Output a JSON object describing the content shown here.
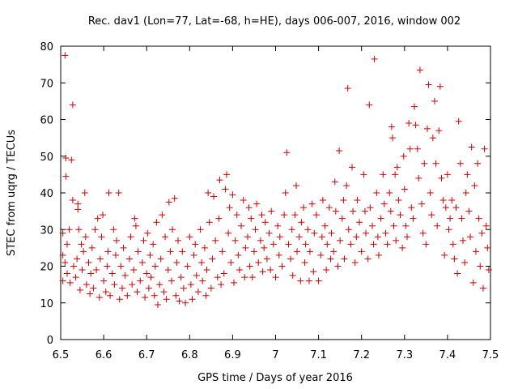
{
  "chart_data": {
    "type": "scatter",
    "title": "Rec. dav1 (Lon=77, Lat=-68, h=HE), days 006-007, 2016, window 002",
    "xlabel": "GPS time / Days of year 2016",
    "ylabel": "STEC from uqrg / TECUs",
    "xlim": [
      6.5,
      7.5
    ],
    "ylim": [
      0,
      80
    ],
    "xticks": [
      "6.5",
      "6.6",
      "6.7",
      "6.8",
      "6.9",
      "7",
      "7.1",
      "7.2",
      "7.3",
      "7.4",
      "7.5"
    ],
    "yticks": [
      "0",
      "10",
      "20",
      "30",
      "40",
      "50",
      "60",
      "70",
      "80"
    ],
    "marker": "+",
    "color": "#cc0000",
    "points": [
      [
        6.505,
        16
      ],
      [
        6.505,
        23
      ],
      [
        6.505,
        29
      ],
      [
        6.51,
        77.5
      ],
      [
        6.51,
        21
      ],
      [
        6.512,
        49.5
      ],
      [
        6.512,
        44.5
      ],
      [
        6.515,
        18
      ],
      [
        6.515,
        26
      ],
      [
        6.52,
        30
      ],
      [
        6.522,
        15.5
      ],
      [
        6.525,
        49
      ],
      [
        6.528,
        64
      ],
      [
        6.528,
        38
      ],
      [
        6.53,
        20
      ],
      [
        6.535,
        17
      ],
      [
        6.538,
        22
      ],
      [
        6.54,
        37
      ],
      [
        6.54,
        35.5
      ],
      [
        6.542,
        30
      ],
      [
        6.545,
        13.5
      ],
      [
        6.548,
        26
      ],
      [
        6.55,
        19
      ],
      [
        6.553,
        24
      ],
      [
        6.556,
        40
      ],
      [
        6.558,
        28
      ],
      [
        6.56,
        15
      ],
      [
        6.565,
        21
      ],
      [
        6.568,
        12.5
      ],
      [
        6.57,
        18
      ],
      [
        6.573,
        25
      ],
      [
        6.576,
        14
      ],
      [
        6.58,
        30
      ],
      [
        6.583,
        19
      ],
      [
        6.586,
        33
      ],
      [
        6.59,
        11.5
      ],
      [
        6.592,
        22
      ],
      [
        6.595,
        28
      ],
      [
        6.598,
        34
      ],
      [
        6.6,
        16
      ],
      [
        6.605,
        13
      ],
      [
        6.608,
        20
      ],
      [
        6.61,
        24
      ],
      [
        6.612,
        40
      ],
      [
        6.615,
        12
      ],
      [
        6.62,
        18
      ],
      [
        6.623,
        30
      ],
      [
        6.625,
        15
      ],
      [
        6.628,
        23
      ],
      [
        6.63,
        27
      ],
      [
        6.635,
        40
      ],
      [
        6.637,
        11
      ],
      [
        6.64,
        20
      ],
      [
        6.643,
        14
      ],
      [
        6.646,
        25
      ],
      [
        6.65,
        17.5
      ],
      [
        6.655,
        12
      ],
      [
        6.66,
        22
      ],
      [
        6.663,
        28
      ],
      [
        6.666,
        15
      ],
      [
        6.67,
        19
      ],
      [
        6.672,
        33
      ],
      [
        6.675,
        31
      ],
      [
        6.678,
        13
      ],
      [
        6.68,
        24
      ],
      [
        6.685,
        16
      ],
      [
        6.69,
        21
      ],
      [
        6.693,
        27
      ],
      [
        6.696,
        11.5
      ],
      [
        6.7,
        18
      ],
      [
        6.702,
        29
      ],
      [
        6.705,
        14
      ],
      [
        6.708,
        23
      ],
      [
        6.71,
        17
      ],
      [
        6.715,
        26
      ],
      [
        6.718,
        12
      ],
      [
        6.72,
        20
      ],
      [
        6.723,
        32
      ],
      [
        6.726,
        9.5
      ],
      [
        6.73,
        15
      ],
      [
        6.733,
        22
      ],
      [
        6.736,
        34
      ],
      [
        6.74,
        13
      ],
      [
        6.743,
        28
      ],
      [
        6.746,
        11
      ],
      [
        6.75,
        19
      ],
      [
        6.752,
        37.5
      ],
      [
        6.755,
        24
      ],
      [
        6.758,
        16
      ],
      [
        6.76,
        30
      ],
      [
        6.765,
        38.5
      ],
      [
        6.768,
        12
      ],
      [
        6.77,
        21
      ],
      [
        6.773,
        27
      ],
      [
        6.776,
        10.5
      ],
      [
        6.78,
        17
      ],
      [
        6.783,
        24
      ],
      [
        6.786,
        14
      ],
      [
        6.79,
        10
      ],
      [
        6.795,
        20
      ],
      [
        6.8,
        28
      ],
      [
        6.803,
        15
      ],
      [
        6.806,
        11
      ],
      [
        6.81,
        23
      ],
      [
        6.813,
        26
      ],
      [
        6.816,
        17.5
      ],
      [
        6.82,
        13
      ],
      [
        6.825,
        30
      ],
      [
        6.828,
        21
      ],
      [
        6.83,
        16
      ],
      [
        6.835,
        25
      ],
      [
        6.838,
        12
      ],
      [
        6.84,
        19
      ],
      [
        6.843,
        40
      ],
      [
        6.846,
        32
      ],
      [
        6.85,
        14
      ],
      [
        6.853,
        22
      ],
      [
        6.856,
        39
      ],
      [
        6.86,
        27
      ],
      [
        6.865,
        17
      ],
      [
        6.868,
        33
      ],
      [
        6.87,
        43.5
      ],
      [
        6.873,
        15
      ],
      [
        6.876,
        24
      ],
      [
        6.88,
        18
      ],
      [
        6.883,
        41
      ],
      [
        6.886,
        45
      ],
      [
        6.89,
        29
      ],
      [
        6.893,
        36
      ],
      [
        6.896,
        21
      ],
      [
        6.9,
        39.5
      ],
      [
        6.903,
        15.5
      ],
      [
        6.906,
        27
      ],
      [
        6.91,
        34
      ],
      [
        6.913,
        23
      ],
      [
        6.916,
        19
      ],
      [
        6.92,
        31
      ],
      [
        6.925,
        38
      ],
      [
        6.928,
        17
      ],
      [
        6.93,
        25
      ],
      [
        6.935,
        28
      ],
      [
        6.938,
        36
      ],
      [
        6.94,
        20
      ],
      [
        6.943,
        33
      ],
      [
        6.946,
        17
      ],
      [
        6.95,
        24
      ],
      [
        6.953,
        30
      ],
      [
        6.956,
        37
      ],
      [
        6.96,
        21
      ],
      [
        6.965,
        27
      ],
      [
        6.968,
        34
      ],
      [
        6.97,
        18.5
      ],
      [
        6.973,
        25
      ],
      [
        6.976,
        32
      ],
      [
        6.98,
        22
      ],
      [
        6.985,
        29
      ],
      [
        6.988,
        19
      ],
      [
        6.99,
        35
      ],
      [
        6.995,
        26
      ],
      [
        7.0,
        17
      ],
      [
        7.005,
        31
      ],
      [
        7.008,
        23
      ],
      [
        7.01,
        28
      ],
      [
        7.015,
        20
      ],
      [
        7.02,
        34
      ],
      [
        7.023,
        40
      ],
      [
        7.026,
        51
      ],
      [
        7.03,
        26
      ],
      [
        7.035,
        22
      ],
      [
        7.038,
        30
      ],
      [
        7.04,
        17.5
      ],
      [
        7.045,
        34
      ],
      [
        7.048,
        42
      ],
      [
        7.05,
        24
      ],
      [
        7.055,
        28
      ],
      [
        7.058,
        16
      ],
      [
        7.06,
        32
      ],
      [
        7.065,
        36
      ],
      [
        7.068,
        21
      ],
      [
        7.07,
        26
      ],
      [
        7.075,
        30
      ],
      [
        7.078,
        16
      ],
      [
        7.08,
        24
      ],
      [
        7.085,
        37
      ],
      [
        7.088,
        18.5
      ],
      [
        7.09,
        29
      ],
      [
        7.095,
        34
      ],
      [
        7.1,
        16
      ],
      [
        7.105,
        23
      ],
      [
        7.108,
        28
      ],
      [
        7.11,
        38
      ],
      [
        7.115,
        31
      ],
      [
        7.118,
        19
      ],
      [
        7.12,
        26
      ],
      [
        7.125,
        36
      ],
      [
        7.128,
        22
      ],
      [
        7.13,
        29
      ],
      [
        7.135,
        24
      ],
      [
        7.138,
        43
      ],
      [
        7.14,
        35
      ],
      [
        7.145,
        20
      ],
      [
        7.148,
        51.5
      ],
      [
        7.15,
        27
      ],
      [
        7.155,
        33
      ],
      [
        7.158,
        38
      ],
      [
        7.16,
        22
      ],
      [
        7.165,
        42
      ],
      [
        7.168,
        68.5
      ],
      [
        7.17,
        30
      ],
      [
        7.175,
        26
      ],
      [
        7.178,
        47
      ],
      [
        7.18,
        35
      ],
      [
        7.185,
        21
      ],
      [
        7.188,
        28
      ],
      [
        7.19,
        38
      ],
      [
        7.195,
        32
      ],
      [
        7.2,
        24
      ],
      [
        7.205,
        45
      ],
      [
        7.208,
        35
      ],
      [
        7.21,
        29
      ],
      [
        7.215,
        22
      ],
      [
        7.218,
        64
      ],
      [
        7.22,
        36
      ],
      [
        7.225,
        31
      ],
      [
        7.228,
        26
      ],
      [
        7.23,
        76.5
      ],
      [
        7.235,
        40
      ],
      [
        7.238,
        28
      ],
      [
        7.24,
        23
      ],
      [
        7.245,
        33
      ],
      [
        7.25,
        45
      ],
      [
        7.253,
        37
      ],
      [
        7.256,
        29
      ],
      [
        7.26,
        26
      ],
      [
        7.265,
        40
      ],
      [
        7.268,
        35
      ],
      [
        7.27,
        58
      ],
      [
        7.272,
        55
      ],
      [
        7.275,
        31
      ],
      [
        7.278,
        45
      ],
      [
        7.28,
        27
      ],
      [
        7.283,
        47
      ],
      [
        7.286,
        38
      ],
      [
        7.29,
        34
      ],
      [
        7.295,
        25
      ],
      [
        7.298,
        50
      ],
      [
        7.3,
        41
      ],
      [
        7.303,
        31
      ],
      [
        7.306,
        28
      ],
      [
        7.31,
        59
      ],
      [
        7.313,
        52
      ],
      [
        7.316,
        36
      ],
      [
        7.32,
        33
      ],
      [
        7.323,
        63.5
      ],
      [
        7.326,
        58.5
      ],
      [
        7.33,
        52
      ],
      [
        7.333,
        44
      ],
      [
        7.336,
        73.5
      ],
      [
        7.34,
        37
      ],
      [
        7.343,
        29
      ],
      [
        7.346,
        48
      ],
      [
        7.35,
        26
      ],
      [
        7.353,
        57.5
      ],
      [
        7.356,
        69.5
      ],
      [
        7.36,
        40
      ],
      [
        7.363,
        34
      ],
      [
        7.366,
        55
      ],
      [
        7.37,
        65
      ],
      [
        7.373,
        48
      ],
      [
        7.376,
        31
      ],
      [
        7.38,
        57
      ],
      [
        7.383,
        69
      ],
      [
        7.386,
        44
      ],
      [
        7.39,
        38
      ],
      [
        7.393,
        23
      ],
      [
        7.396,
        36
      ],
      [
        7.4,
        45
      ],
      [
        7.403,
        30
      ],
      [
        7.406,
        33
      ],
      [
        7.41,
        38
      ],
      [
        7.413,
        26
      ],
      [
        7.416,
        22
      ],
      [
        7.42,
        36
      ],
      [
        7.423,
        18
      ],
      [
        7.426,
        59.5
      ],
      [
        7.43,
        48
      ],
      [
        7.433,
        33
      ],
      [
        7.436,
        27
      ],
      [
        7.44,
        21
      ],
      [
        7.443,
        40
      ],
      [
        7.446,
        45
      ],
      [
        7.45,
        35
      ],
      [
        7.453,
        28
      ],
      [
        7.456,
        52.5
      ],
      [
        7.46,
        15.5
      ],
      [
        7.463,
        42
      ],
      [
        7.466,
        24
      ],
      [
        7.47,
        48
      ],
      [
        7.473,
        33
      ],
      [
        7.476,
        20
      ],
      [
        7.48,
        29
      ],
      [
        7.483,
        14
      ],
      [
        7.486,
        52
      ],
      [
        7.49,
        31
      ],
      [
        7.493,
        25
      ],
      [
        7.496,
        19
      ]
    ]
  }
}
